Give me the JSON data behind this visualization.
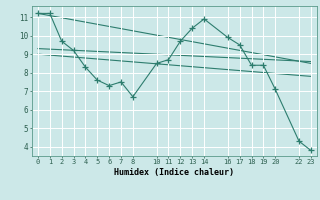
{
  "xlabel": "Humidex (Indice chaleur)",
  "background_color": "#cce8e8",
  "grid_color": "#ffffff",
  "line_color": "#2d7d6e",
  "xlim": [
    -0.5,
    23.5
  ],
  "ylim": [
    3.5,
    11.6
  ],
  "yticks": [
    4,
    5,
    6,
    7,
    8,
    9,
    10,
    11
  ],
  "xtick_positions": [
    0,
    1,
    2,
    3,
    4,
    5,
    6,
    7,
    8,
    10,
    11,
    12,
    13,
    14,
    16,
    17,
    18,
    19,
    20,
    22,
    23
  ],
  "xtick_labels": [
    "0",
    "1",
    "2",
    "3",
    "4",
    "5",
    "6",
    "7",
    "8",
    "10",
    "11",
    "12",
    "13",
    "14",
    "16",
    "17",
    "18",
    "19",
    "20",
    "22",
    "23"
  ],
  "series1_x": [
    0,
    1,
    2,
    3,
    4,
    5,
    6,
    7,
    8,
    10,
    11,
    12,
    13,
    14,
    16,
    17,
    18,
    19,
    20,
    22,
    23
  ],
  "series1_y": [
    11.2,
    11.2,
    9.7,
    9.2,
    8.3,
    7.6,
    7.3,
    7.5,
    6.7,
    8.5,
    8.7,
    9.7,
    10.4,
    10.9,
    9.9,
    9.5,
    8.4,
    8.4,
    7.1,
    4.3,
    3.8
  ],
  "series2_x": [
    0,
    23
  ],
  "series2_y": [
    11.2,
    8.5
  ],
  "series3_x": [
    0,
    23
  ],
  "series3_y": [
    9.3,
    8.6
  ],
  "series4_x": [
    0,
    23
  ],
  "series4_y": [
    9.0,
    7.8
  ]
}
